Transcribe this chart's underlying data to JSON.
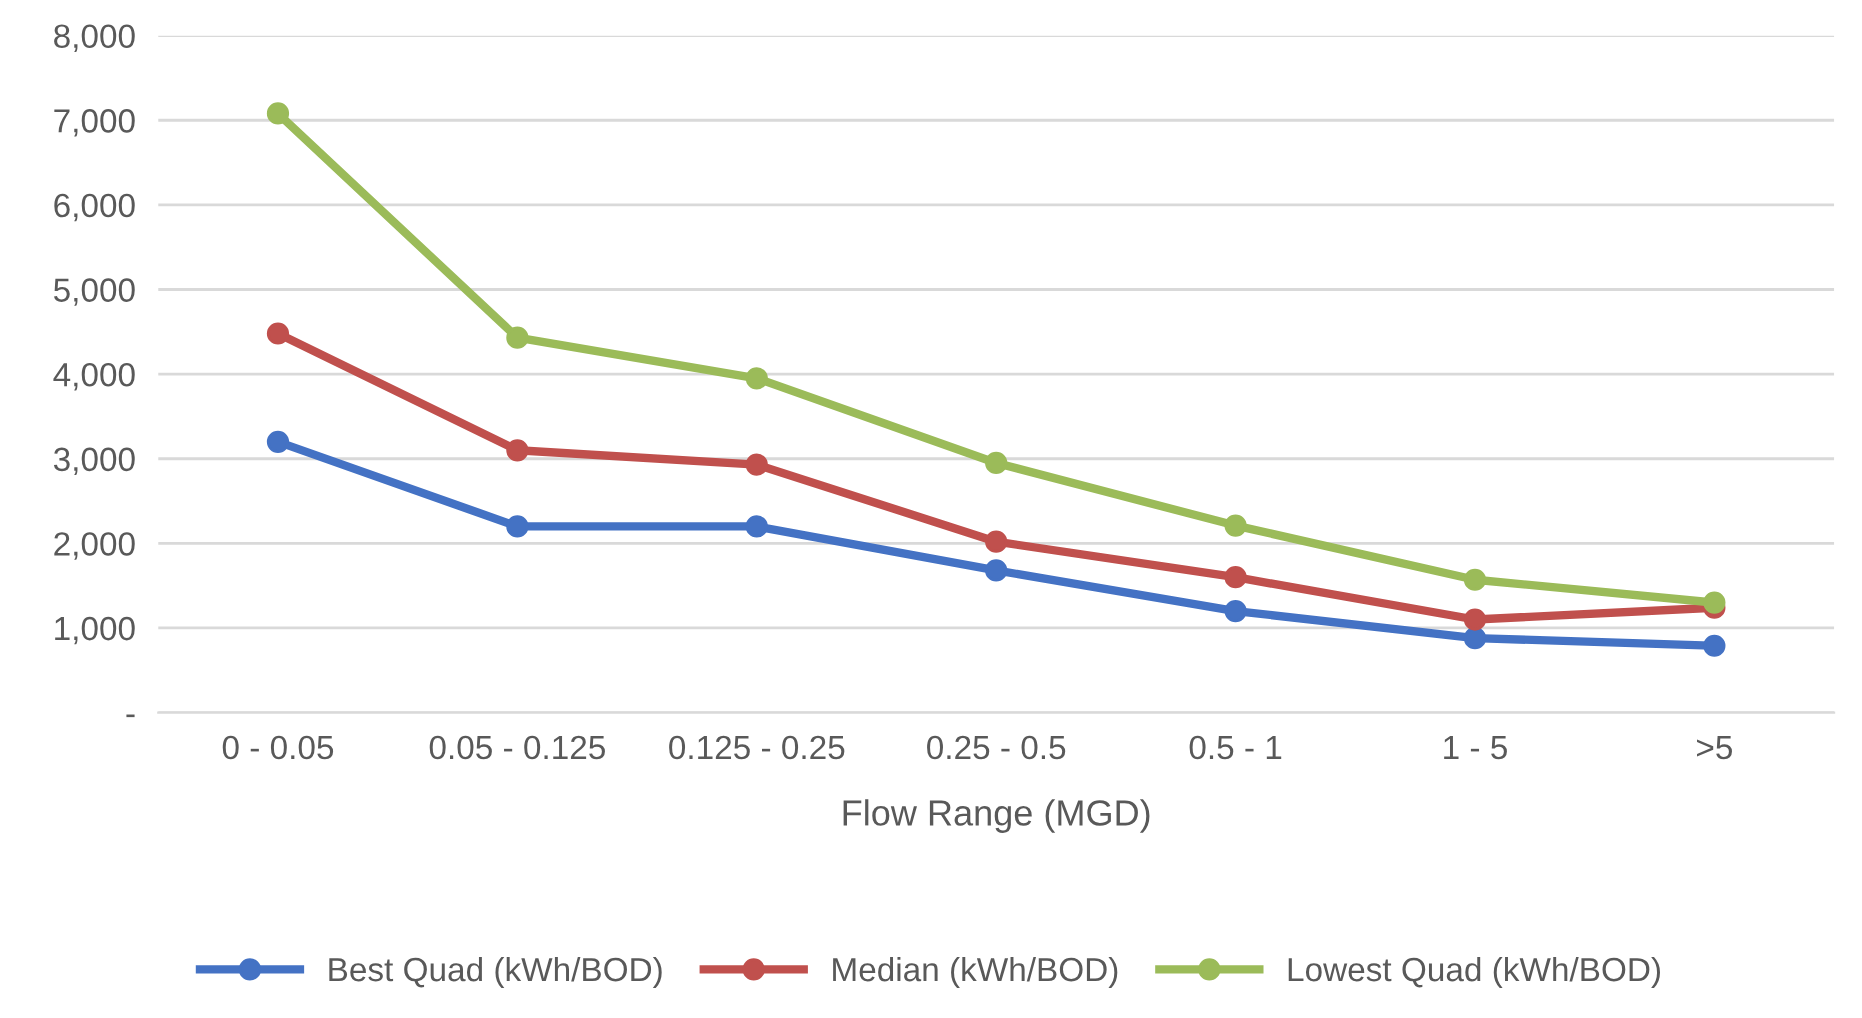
{
  "chart_data": {
    "type": "line",
    "xlabel": "Flow Range (MGD)",
    "categories": [
      "0 - 0.05",
      "0.05 - 0.125",
      "0.125 - 0.25",
      "0.25 - 0.5",
      "0.5 - 1",
      "1 - 5",
      ">5"
    ],
    "series": [
      {
        "name": "Best Quad (kWh/BOD)",
        "color": "#4472c4",
        "values": [
          3200,
          2200,
          2200,
          1680,
          1200,
          880,
          790
        ]
      },
      {
        "name": "Median (kWh/BOD)",
        "color": "#c0504d",
        "values": [
          4480,
          3100,
          2930,
          2020,
          1600,
          1100,
          1240
        ]
      },
      {
        "name": "Lowest Quad (kWh/BOD)",
        "color": "#9bbb59",
        "values": [
          7080,
          4430,
          3950,
          2950,
          2210,
          1570,
          1300
        ]
      }
    ],
    "ylim": [
      0,
      8000
    ],
    "yticks": [
      {
        "value": 0,
        "label": "-"
      },
      {
        "value": 1000,
        "label": "1,000"
      },
      {
        "value": 2000,
        "label": "2,000"
      },
      {
        "value": 3000,
        "label": "3,000"
      },
      {
        "value": 4000,
        "label": "4,000"
      },
      {
        "value": 5000,
        "label": "5,000"
      },
      {
        "value": 6000,
        "label": "6,000"
      },
      {
        "value": 7000,
        "label": "7,000"
      },
      {
        "value": 8000,
        "label": "8,000"
      }
    ],
    "grid": "y",
    "legend": "bottom",
    "marker": "circle",
    "line_style": "solid"
  }
}
